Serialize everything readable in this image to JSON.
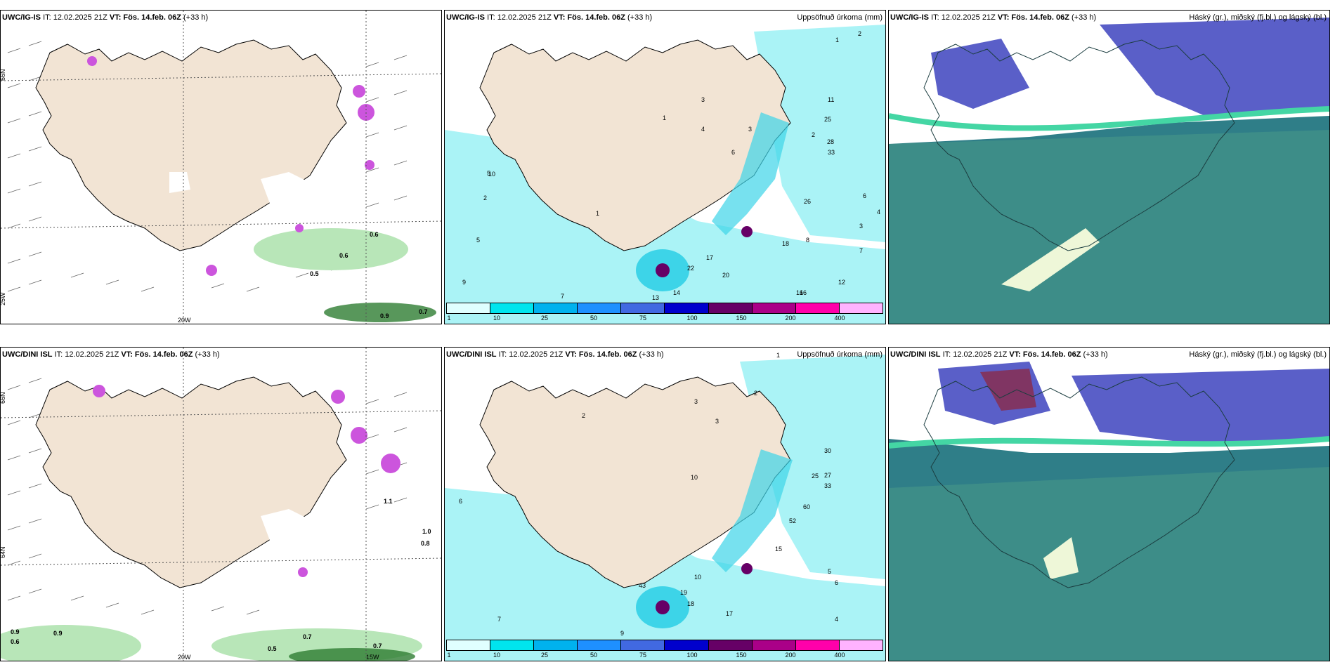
{
  "panels": [
    {
      "model": "UWC/IG-IS",
      "it": "IT: 12.02.2025 21Z",
      "vt_label": "VT:",
      "vt": "Fös. 14.feb. 06Z",
      "lead": "(+33 h)",
      "right_title": ""
    },
    {
      "model": "UWC/IG-IS",
      "it": "IT: 12.02.2025 21Z",
      "vt_label": "VT:",
      "vt": "Fös. 14.feb. 06Z",
      "lead": "(+33 h)",
      "right_title": "Uppsöfnuð úrkoma (mm)"
    },
    {
      "model": "UWC/IG-IS",
      "it": "IT: 12.02.2025 21Z",
      "vt_label": "VT:",
      "vt": "Fös. 14.feb. 06Z",
      "lead": "(+33 h)",
      "right_title": "Háský (gr.), miðský (fj.bl.) og lágský (bl.)"
    },
    {
      "model": "UWC/DINI ISL",
      "it": "IT: 12.02.2025 21Z",
      "vt_label": "VT:",
      "vt": "Fös. 14.feb. 06Z",
      "lead": "(+33 h)",
      "right_title": ""
    },
    {
      "model": "UWC/DINI ISL",
      "it": "IT: 12.02.2025 21Z",
      "vt_label": "VT:",
      "vt": "Fös. 14.feb. 06Z",
      "lead": "(+33 h)",
      "right_title": "Uppsöfnuð úrkoma (mm)"
    },
    {
      "model": "UWC/DINI ISL",
      "it": "IT: 12.02.2025 21Z",
      "vt_label": "VT:",
      "vt": "Fös. 14.feb. 06Z",
      "lead": "(+33 h)",
      "right_title": "Háský (gr.), miðský (fj.bl.) og lágský (bl.)"
    }
  ],
  "legend": {
    "ticks": [
      "1",
      "10",
      "25",
      "50",
      "75",
      "100",
      "150",
      "200",
      "400"
    ],
    "colors": [
      "#e0ffff",
      "#00e5ee",
      "#00b2ee",
      "#1e90ff",
      "#4169e1",
      "#0000cd",
      "#660066",
      "#aa0088",
      "#ff00aa",
      "#ffb3ff"
    ]
  },
  "map_labels": {
    "lon_20w": "20W",
    "lon_15w": "15W",
    "lon_25w": "25W",
    "lat_66n": "66N",
    "lat_64n": "64N"
  },
  "wind_values_top": [
    "0.6",
    "0.6",
    "0.5",
    "0.7",
    "0.9"
  ],
  "wind_values_bottom": [
    "1.1",
    "1.0",
    "0.8",
    "0.9",
    "0.6",
    "0.9",
    "0.5",
    "0.7",
    "0.7"
  ],
  "precip_values_top": [
    "1",
    "2",
    "3",
    "1",
    "2",
    "4",
    "3",
    "6",
    "12",
    "25",
    "26",
    "33",
    "28",
    "18",
    "22",
    "17",
    "20",
    "16",
    "14",
    "13",
    "9",
    "7",
    "5",
    "2",
    "10",
    "8",
    "4",
    "1",
    "3",
    "6",
    "5",
    "7",
    "11",
    "16"
  ],
  "precip_values_bottom": [
    "2",
    "3",
    "6",
    "10",
    "30",
    "27",
    "25",
    "33",
    "52",
    "60",
    "43",
    "19",
    "18",
    "17",
    "15",
    "10",
    "9",
    "7",
    "6",
    "5",
    "4",
    "2",
    "1",
    "3"
  ],
  "colors": {
    "land": "#f2e4d4",
    "purple": "#cc55dd",
    "green_light": "#b8e6b8",
    "green_dark": "#2e7d32",
    "cyan_light": "#aaf3f6",
    "cyan": "#3dd4e8",
    "cloud_teal": "#2f7e88",
    "cloud_green": "#5aa88a",
    "cloud_violet": "#5a5fc8",
    "cloud_mint": "#44d6a4"
  }
}
